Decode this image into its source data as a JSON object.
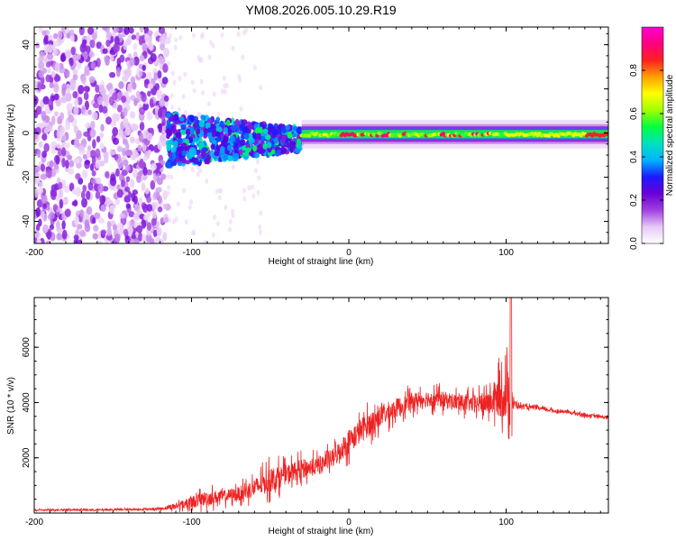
{
  "title": "YM08.2026.005.10.29.R19",
  "chart_data": [
    {
      "type": "heatmap",
      "title": "YM08.2026.005.10.29.R19",
      "xlabel": "Height of straight line (km)",
      "ylabel": "Frequency (Hz)",
      "xlim": [
        -200,
        165
      ],
      "ylim": [
        -50,
        48
      ],
      "xticks": [
        -200,
        -100,
        0,
        100
      ],
      "yticks": [
        -40,
        -20,
        0,
        20,
        40
      ],
      "colorbar": {
        "label": "Normalized spectral amplitude",
        "range": [
          0,
          1
        ],
        "ticks": [
          0.0,
          0.2,
          0.4,
          0.6,
          0.8
        ],
        "colormap": [
          "#ffffff",
          "#e6c8f5",
          "#a040e0",
          "#6a00d8",
          "#1a1aff",
          "#00b4ff",
          "#00e0c0",
          "#00ff40",
          "#a0ff00",
          "#ffff00",
          "#ffa000",
          "#ff2020",
          "#ff0080",
          "#ff00d0"
        ]
      },
      "description_regions": [
        {
          "x_range": [
            -200,
            -115
          ],
          "freq_range": [
            -50,
            48
          ],
          "amplitude": 0.12,
          "pattern": "broadband noise"
        },
        {
          "x_range": [
            -115,
            -30
          ],
          "freq_range": [
            -12,
            8
          ],
          "amplitude": 0.35,
          "pattern": "scattered low-frequency energy"
        },
        {
          "x_range": [
            -30,
            165
          ],
          "freq_range": [
            -3,
            3
          ],
          "amplitude": 0.9,
          "pattern": "narrow band near 0 Hz"
        }
      ]
    },
    {
      "type": "line",
      "xlabel": "Height of straight line (km)",
      "ylabel": "SNR (10 * v/v)",
      "xlim": [
        -200,
        165
      ],
      "ylim": [
        0,
        7800
      ],
      "xticks": [
        -200,
        -100,
        0,
        100
      ],
      "yticks": [
        2000,
        4000,
        6000
      ],
      "series": [
        {
          "name": "SNR",
          "color": "#ee2222",
          "x": [
            -200,
            -180,
            -160,
            -140,
            -120,
            -110,
            -100,
            -90,
            -80,
            -70,
            -60,
            -50,
            -40,
            -30,
            -20,
            -10,
            0,
            10,
            20,
            30,
            40,
            50,
            60,
            70,
            80,
            90,
            95,
            100,
            103,
            105,
            110,
            120,
            130,
            140,
            150,
            165
          ],
          "values": [
            100,
            120,
            110,
            130,
            150,
            250,
            400,
            550,
            600,
            700,
            900,
            1200,
            1400,
            1600,
            1700,
            2000,
            2600,
            3100,
            3500,
            3800,
            4050,
            4150,
            4100,
            4000,
            3950,
            4000,
            4200,
            4300,
            4100,
            3950,
            3850,
            3800,
            3700,
            3650,
            3550,
            3450
          ],
          "noise_amplitude": [
            60,
            60,
            60,
            60,
            80,
            250,
            450,
            550,
            450,
            500,
            700,
            900,
            700,
            700,
            600,
            700,
            900,
            900,
            800,
            700,
            600,
            600,
            600,
            600,
            600,
            900,
            1400,
            1800,
            2200,
            300,
            150,
            130,
            120,
            120,
            120,
            120
          ],
          "peak": {
            "x": 103,
            "value": 7800
          }
        }
      ]
    }
  ]
}
